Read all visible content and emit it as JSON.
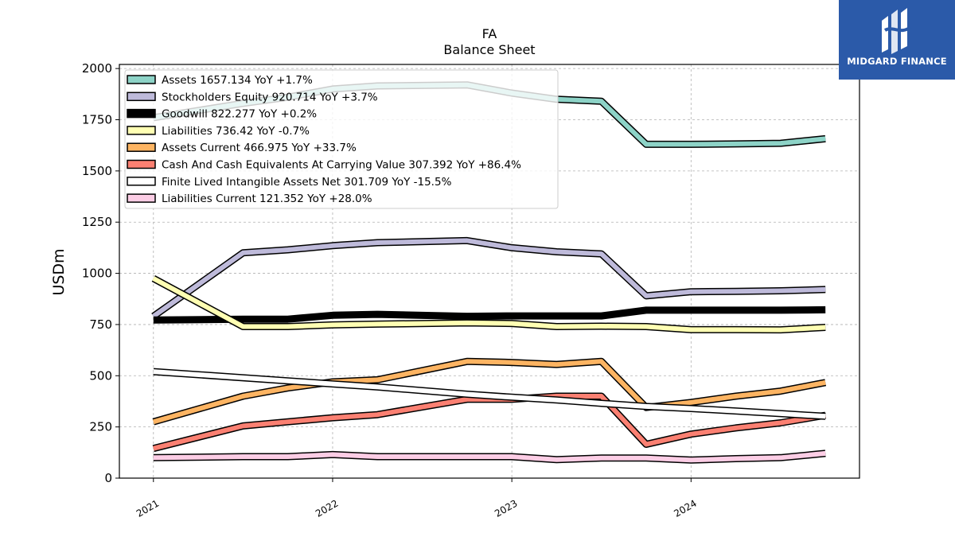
{
  "chart_data": {
    "type": "line",
    "title": "FA",
    "subtitle": "Balance  Sheet",
    "ylabel": "USDm",
    "xlabel": "",
    "ylim": [
      0,
      2020
    ],
    "xlim": [
      2020.81,
      2024.94
    ],
    "yticks": [
      0,
      250,
      500,
      750,
      1000,
      1250,
      1500,
      1750,
      2000
    ],
    "xticks": [
      {
        "value": 2021,
        "label": "2021"
      },
      {
        "value": 2022,
        "label": "2022"
      },
      {
        "value": 2023,
        "label": "2023"
      },
      {
        "value": 2024,
        "label": "2024"
      }
    ],
    "grid": true,
    "legend_position": "top-left",
    "x": [
      2021.0,
      2021.5,
      2021.75,
      2022.0,
      2022.25,
      2022.75,
      2023.0,
      2023.25,
      2023.5,
      2023.75,
      2024.0,
      2024.25,
      2024.5,
      2024.75
    ],
    "series": [
      {
        "name": "Assets",
        "legend": "Assets  1657.134 YoY +1.7%",
        "color": "#8dd3c7",
        "width": 6,
        "values": [
          1760,
          1830,
          1860,
          1900,
          1915,
          1920,
          1880,
          1850,
          1840,
          1630,
          1630,
          1632,
          1635,
          1657
        ]
      },
      {
        "name": "Stockholders Equity",
        "legend": "Stockholders Equity  920.714 YoY +3.7%",
        "color": "#bebada",
        "width": 6,
        "values": [
          790,
          1100,
          1115,
          1135,
          1150,
          1160,
          1125,
          1105,
          1095,
          890,
          910,
          912,
          915,
          921
        ]
      },
      {
        "name": "Goodwill",
        "legend": "Goodwill  822.277 YoY +0.2%",
        "color": "#000000",
        "width": 9,
        "values": [
          772,
          776,
          776,
          795,
          800,
          790,
          792,
          792,
          792,
          820,
          820,
          820,
          820,
          822
        ]
      },
      {
        "name": "Liabilities",
        "legend": "Liabilities  736.42 YoY -0.7%",
        "color": "#ffffb3",
        "width": 6,
        "values": [
          975,
          740,
          740,
          748,
          752,
          758,
          755,
          740,
          742,
          740,
          725,
          725,
          724,
          736
        ]
      },
      {
        "name": "Assets Current",
        "legend": "Assets Current  466.975 YoY +33.7%",
        "color": "#fdb462",
        "width": 6,
        "values": [
          275,
          400,
          440,
          470,
          480,
          570,
          565,
          555,
          570,
          345,
          370,
          400,
          425,
          467
        ]
      },
      {
        "name": "Cash And Cash Equivalents At Carrying Value",
        "legend": "Cash And Cash Equivalents At Carrying Value  307.392 YoY +86.4%",
        "color": "#fb8072",
        "width": 6,
        "values": [
          145,
          255,
          275,
          295,
          310,
          385,
          385,
          400,
          400,
          165,
          215,
          245,
          270,
          307
        ]
      },
      {
        "name": "Finite Lived Intangible Assets Net",
        "legend": "Finite Lived Intangible Assets Net  301.709 YoY -15.5%",
        "color": "#ffffff",
        "width": 6,
        "values": [
          520,
          null,
          475,
          460,
          445,
          410,
          395,
          382,
          365,
          350,
          340,
          328,
          315,
          302
        ]
      },
      {
        "name": "Liabilities Current",
        "legend": "Liabilities Current  121.352 YoY +28.0%",
        "color": "#fccde5",
        "width": 6,
        "values": [
          100,
          105,
          105,
          115,
          105,
          105,
          105,
          90,
          98,
          98,
          88,
          95,
          100,
          121
        ]
      }
    ]
  },
  "logo": {
    "text": "MIDGARD FINANCE"
  }
}
